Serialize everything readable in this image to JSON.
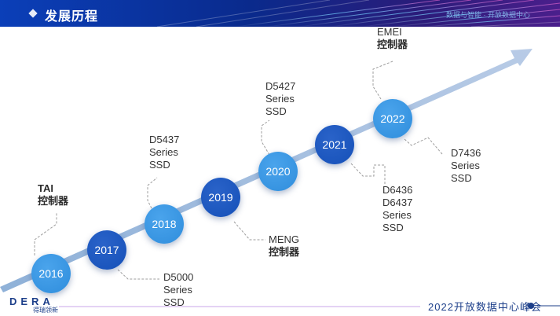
{
  "header": {
    "title": "发展历程",
    "right_text": "数据与智能 · 开放数据中心"
  },
  "timeline": {
    "milestones": [
      {
        "year": "2016"
      },
      {
        "year": "2017"
      },
      {
        "year": "2018"
      },
      {
        "year": "2019"
      },
      {
        "year": "2020"
      },
      {
        "year": "2021"
      },
      {
        "year": "2022"
      }
    ],
    "annotations": {
      "tai": [
        "TAI",
        "控制器"
      ],
      "d5000": [
        "D5000",
        "Series",
        "SSD"
      ],
      "d5437": [
        "D5437",
        "Series",
        "SSD"
      ],
      "meng": [
        "MENG",
        "控制器"
      ],
      "d5427": [
        "D5427",
        "Series",
        "SSD"
      ],
      "d6436": [
        "D6436",
        "D6437",
        "Series",
        "SSD"
      ],
      "emei": [
        "EMEI",
        "控制器"
      ],
      "d7436": [
        "D7436",
        "Series",
        "SSD"
      ]
    }
  },
  "footer": {
    "logo_text": "DERA",
    "logo_cn": "得瑞领新",
    "conference": "2022开放数据中心峰会"
  },
  "colors": {
    "node_light": "#2f8ddc",
    "node_dark": "#1550b8",
    "arrow": "#a9bfdd",
    "banner": "#0a2a8c",
    "brand": "#1d3f8a"
  }
}
